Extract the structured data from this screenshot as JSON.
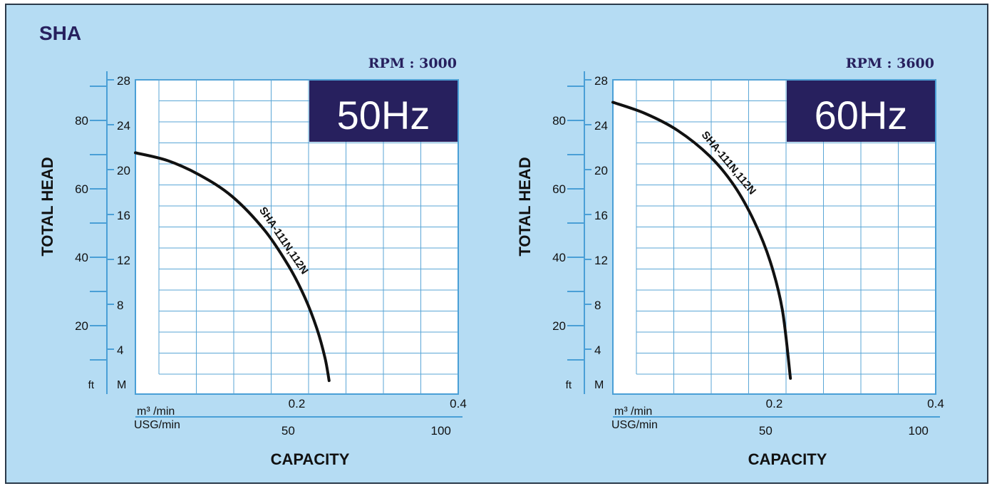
{
  "page_title": "SHA",
  "colors": {
    "background": "#b5dcf3",
    "frame": "#2b3a4a",
    "grid": "#5aa6d6",
    "plot_bg": "#ffffff",
    "axis": "#4a9fd6",
    "badge_bg": "#27205e",
    "title": "#27205e",
    "rpm_text": "#27205e",
    "curve": "#111111"
  },
  "chart_data": [
    {
      "type": "line",
      "badge": "50Hz",
      "rpm_label": "RPM : 3000",
      "ylabel": "TOTAL HEAD",
      "xlabel": "CAPACITY",
      "ylim_m": [
        0,
        28
      ],
      "yticks_m": [
        "4",
        "8",
        "12",
        "16",
        "20",
        "24",
        "28"
      ],
      "y_unit_m": "M",
      "yticks_ft": [
        "20",
        "40",
        "60",
        "80"
      ],
      "y_unit_ft": "ft",
      "xlim_m3": [
        0,
        0.4
      ],
      "xticks_m3": [
        "0.2",
        "0.4"
      ],
      "x_unit_m3": "m³ /min",
      "xticks_usg": [
        "50",
        "100"
      ],
      "x_unit_usg": "USG/min",
      "series": [
        {
          "name": "SHA-111N,112N",
          "x": [
            0.0,
            0.04,
            0.08,
            0.12,
            0.16,
            0.19,
            0.21,
            0.225,
            0.235,
            0.24
          ],
          "y": [
            21.5,
            20.8,
            19.5,
            17.6,
            14.6,
            11.4,
            8.6,
            5.8,
            3.2,
            1.2
          ]
        }
      ]
    },
    {
      "type": "line",
      "badge": "60Hz",
      "rpm_label": "RPM : 3600",
      "ylabel": "TOTAL HEAD",
      "xlabel": "CAPACITY",
      "ylim_m": [
        0,
        28
      ],
      "yticks_m": [
        "4",
        "8",
        "12",
        "16",
        "20",
        "24",
        "28"
      ],
      "y_unit_m": "M",
      "yticks_ft": [
        "20",
        "40",
        "60",
        "80"
      ],
      "y_unit_ft": "ft",
      "xlim_m3": [
        0,
        0.4
      ],
      "xticks_m3": [
        "0.2",
        "0.4"
      ],
      "x_unit_m3": "m³ /min",
      "xticks_usg": [
        "50",
        "100"
      ],
      "x_unit_usg": "USG/min",
      "series": [
        {
          "name": "SHA-111N,112N",
          "x": [
            0.0,
            0.04,
            0.08,
            0.12,
            0.15,
            0.175,
            0.195,
            0.21,
            0.22
          ],
          "y": [
            26.0,
            25.0,
            23.5,
            21.2,
            18.6,
            15.4,
            11.8,
            7.5,
            1.4
          ]
        }
      ]
    }
  ]
}
